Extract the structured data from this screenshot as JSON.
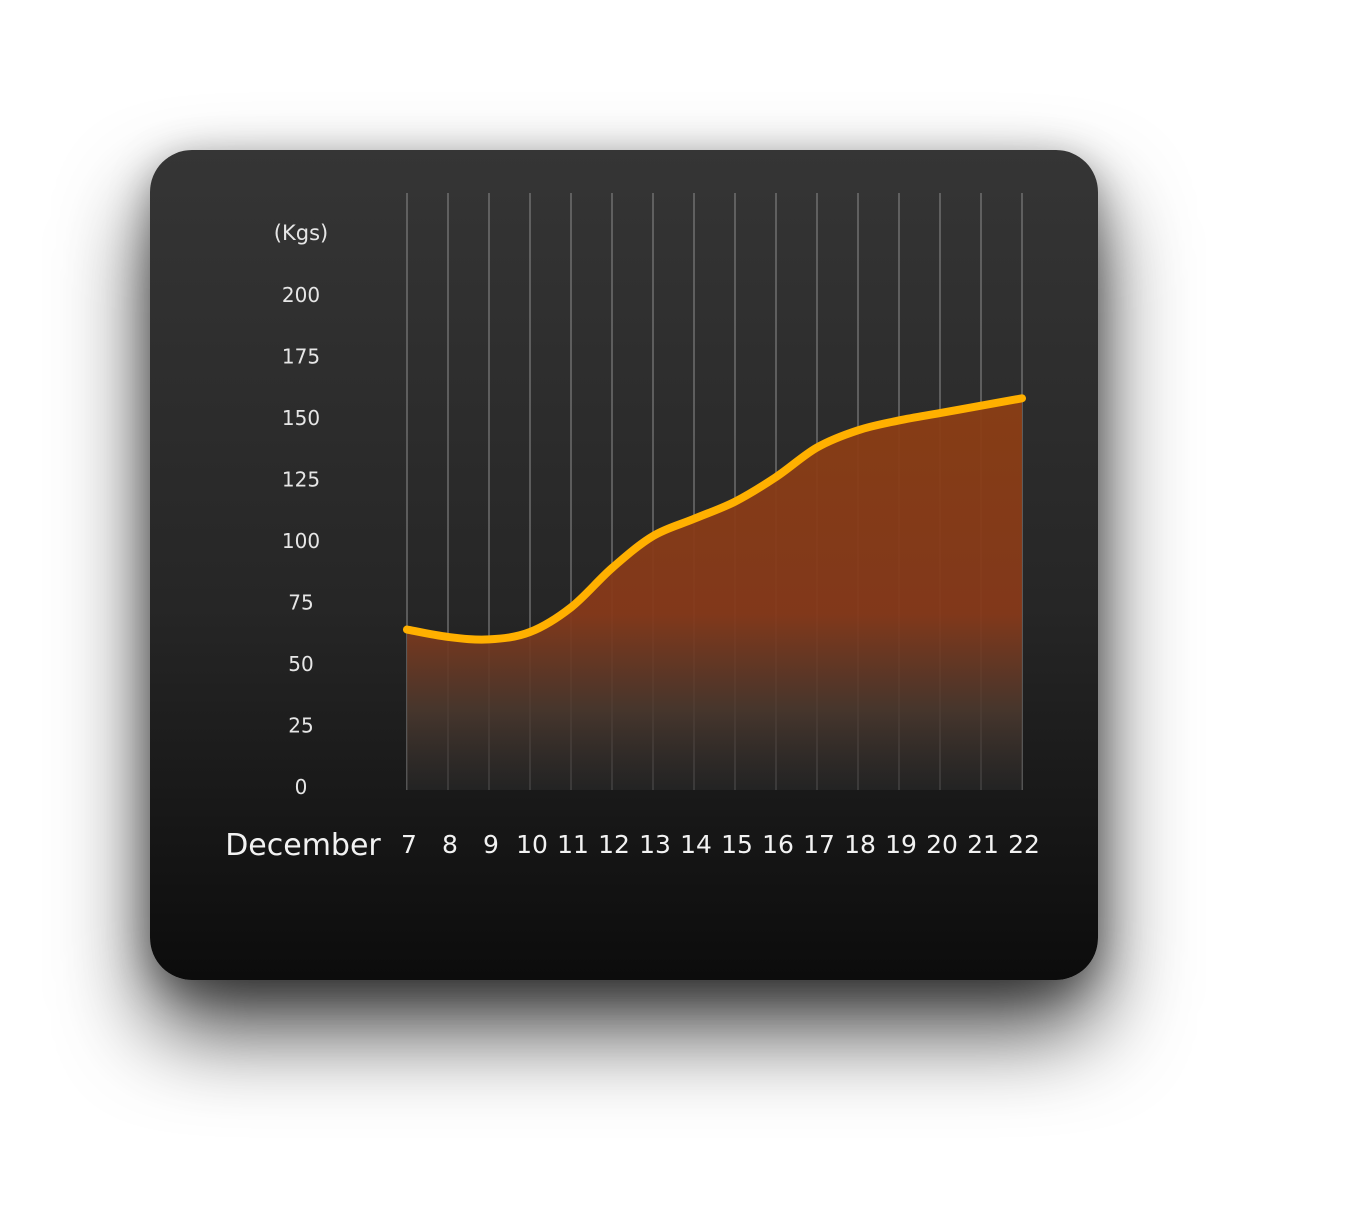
{
  "chart_data": {
    "type": "area",
    "unit_label": "(Kgs)",
    "month_label": "December",
    "x": [
      7,
      8,
      9,
      10,
      11,
      12,
      13,
      14,
      15,
      16,
      17,
      18,
      19,
      20,
      21,
      22
    ],
    "values": [
      64,
      61,
      60,
      63,
      73,
      89,
      102,
      109,
      116,
      126,
      138,
      145,
      149,
      152,
      155,
      158
    ],
    "y_ticks": [
      0,
      25,
      50,
      75,
      100,
      125,
      150,
      175,
      200
    ],
    "ylim": [
      0,
      200
    ],
    "grid": "vertical",
    "colors": {
      "line": "#FFB000",
      "fill": "#8B3E14",
      "grid": "#8a8a8a",
      "card_top": "#353535",
      "card_bottom": "#0c0c0c"
    }
  }
}
